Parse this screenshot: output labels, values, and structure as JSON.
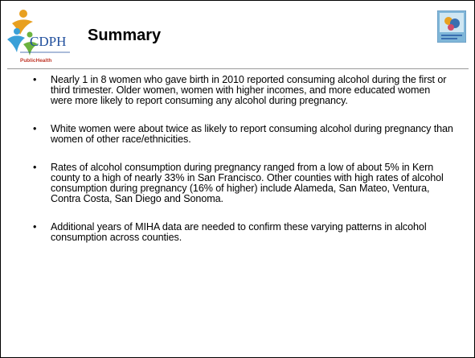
{
  "header": {
    "logo_text": "CDPH",
    "logo_subtext": "PublicHealth",
    "title": "Summary"
  },
  "bullets": [
    "Nearly 1 in 8 women who gave birth in 2010 reported consuming alcohol during the first or third trimester.  Older women, women with higher incomes, and more educated women were more likely to report consuming any alcohol during pregnancy.",
    "White women were about twice as likely to report consuming alcohol during pregnancy than women of other race/ethnicities.",
    "Rates of alcohol consumption during pregnancy ranged from a low of about 5% in Kern county to a high of nearly 33% in San Francisco.  Other counties with high rates of alcohol consumption during pregnancy (16% of higher) include Alameda, San Mateo, Ventura, Contra Costa, San Diego and Sonoma.",
    "Additional years of MIHA data are needed to confirm these varying patterns in alcohol consumption across counties."
  ]
}
